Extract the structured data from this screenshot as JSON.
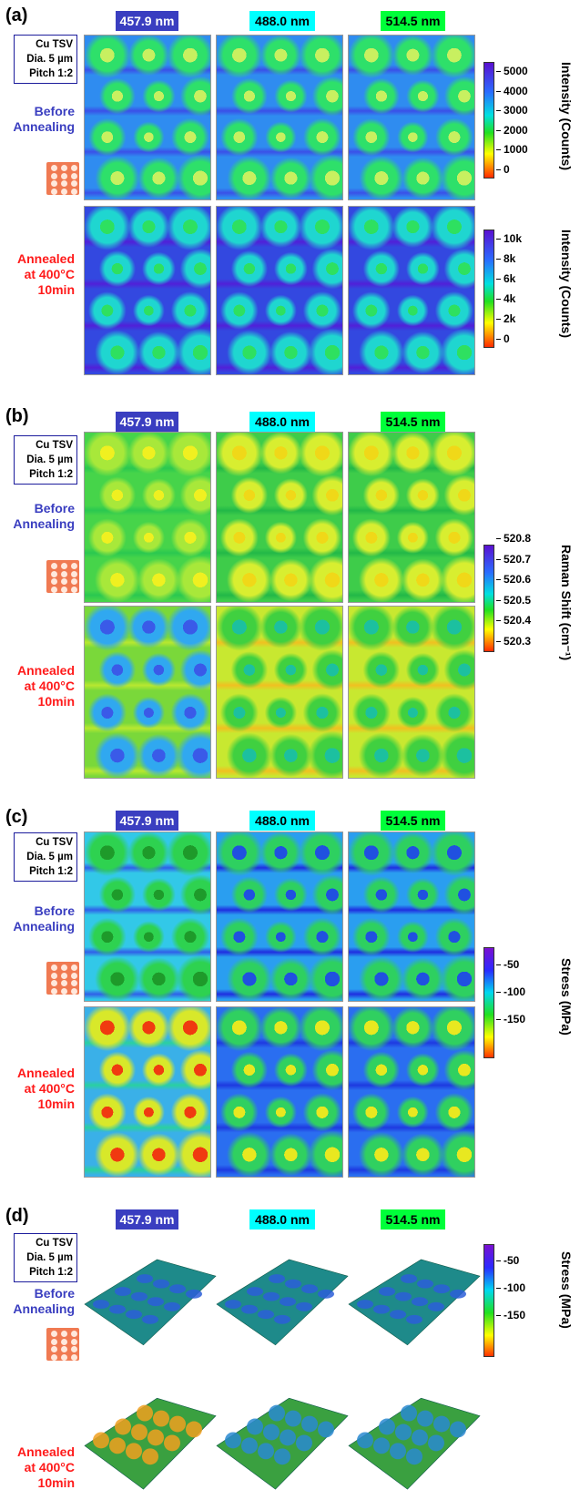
{
  "wavelengths": [
    "457.9 nm",
    "488.0 nm",
    "514.5 nm"
  ],
  "sample": {
    "line1": "Cu TSV",
    "line2": "Dia. 5 µm",
    "line3": "Pitch 1:2"
  },
  "before": {
    "line1": "Before",
    "line2": "Annealing"
  },
  "after": {
    "line1": "Annealed",
    "line2": "at 400°C",
    "line3": "10min"
  },
  "panels": {
    "a": {
      "label": "(a)",
      "cb1_title": "Intensity (Counts)",
      "cb1_ticks": [
        "5000",
        "4000",
        "3000",
        "2000",
        "1000",
        "0"
      ],
      "cb2_title": "Intensity (Counts)",
      "cb2_ticks": [
        "10k",
        "8k",
        "6k",
        "4k",
        "2k",
        "0"
      ]
    },
    "b": {
      "label": "(b)",
      "cb_title": "Raman Shift (cm⁻¹)",
      "cb_ticks": [
        "520.8",
        "520.7",
        "520.6",
        "520.5",
        "520.4",
        "520.3"
      ]
    },
    "c": {
      "label": "(c)",
      "cb_title": "Stress (MPa)",
      "cb_ticks": [
        "-50",
        "-100",
        "-150"
      ]
    },
    "d": {
      "label": "(d)",
      "cb_title": "Stress (MPa)",
      "cb_ticks": [
        "-50",
        "-100",
        "-150"
      ]
    }
  },
  "colors": {
    "wl1": "#3a3ec0",
    "wl2": "#00ffff",
    "wl3": "#00ff3a",
    "before_text": "#3a3ec0",
    "after_text": "#ff1a1a"
  }
}
